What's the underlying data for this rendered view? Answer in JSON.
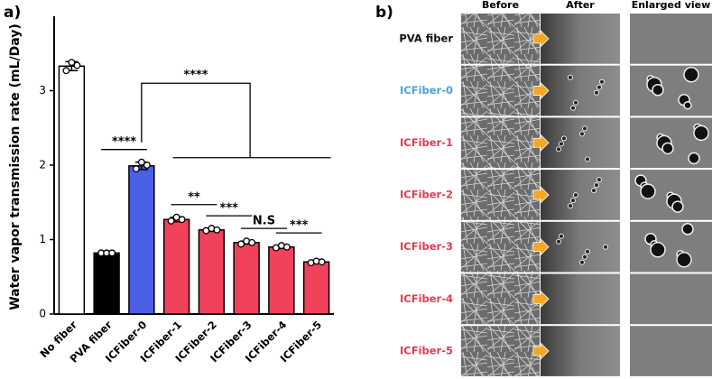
{
  "chart_data": {
    "type": "bar",
    "panel_label": "a)",
    "ylabel": "Water vapor transmission rate (mL/Day)",
    "categories": [
      "No fiber",
      "PVA fiber",
      "ICFiber-0",
      "ICFiber-1",
      "ICFiber-2",
      "ICFiber-3",
      "ICFiber-4",
      "ICFiber-5"
    ],
    "values": [
      3.33,
      0.82,
      1.99,
      1.27,
      1.13,
      0.96,
      0.9,
      0.7
    ],
    "errors": [
      0.06,
      0.01,
      0.05,
      0.03,
      0.02,
      0.02,
      0.02,
      0.01
    ],
    "points": [
      [
        3.27,
        3.38,
        3.34
      ],
      [
        0.82,
        0.82,
        0.82
      ],
      [
        1.95,
        2.04,
        2.0
      ],
      [
        1.25,
        1.3,
        1.27
      ],
      [
        1.12,
        1.15,
        1.13
      ],
      [
        0.94,
        0.98,
        0.96
      ],
      [
        0.89,
        0.92,
        0.9
      ],
      [
        0.69,
        0.71,
        0.7
      ]
    ],
    "colors": [
      "#ffffff",
      "#000000",
      "#4a5fe6",
      "#f0435b",
      "#f0435b",
      "#f0435b",
      "#f0435b",
      "#f0435b"
    ],
    "ylim": [
      0,
      4
    ],
    "yticks": [
      0,
      1,
      2,
      3
    ],
    "annotations": [
      {
        "text": "****",
        "from": 1,
        "to": 2
      },
      {
        "text": "**",
        "from": 3,
        "to": 4
      },
      {
        "text": "***",
        "from": 4,
        "to": 5
      },
      {
        "text": "N.S",
        "from": 5,
        "to": 6
      },
      {
        "text": "***",
        "from": 6,
        "to": 7
      },
      {
        "text": "****",
        "from": 2,
        "to_group": [
          3,
          7
        ]
      }
    ]
  },
  "panel_b": {
    "panel_label": "b)",
    "columns": [
      "Before",
      "After",
      "Enlarged view"
    ],
    "rows": [
      {
        "label": "PVA fiber",
        "color": "#111111"
      },
      {
        "label": "ICFiber-0",
        "color": "#4aa3d6"
      },
      {
        "label": "ICFiber-1",
        "color": "#e8384f"
      },
      {
        "label": "ICFiber-2",
        "color": "#e8384f"
      },
      {
        "label": "ICFiber-3",
        "color": "#e8384f"
      },
      {
        "label": "ICFiber-4",
        "color": "#e8384f"
      },
      {
        "label": "ICFiber-5",
        "color": "#e8384f"
      }
    ]
  }
}
